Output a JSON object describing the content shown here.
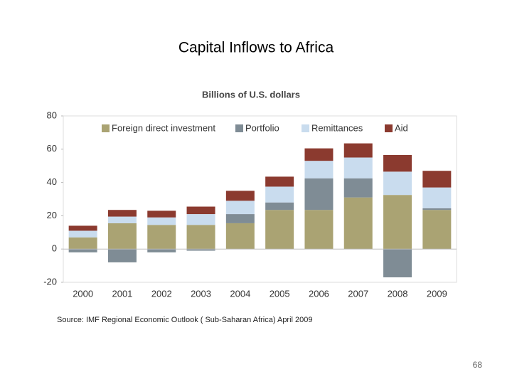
{
  "title": "Capital Inflows to Africa",
  "chart_data": {
    "type": "stacked-bar",
    "subtitle": "Billions of U.S. dollars",
    "categories": [
      "2000",
      "2001",
      "2002",
      "2003",
      "2004",
      "2005",
      "2006",
      "2007",
      "2008",
      "2009"
    ],
    "series": [
      {
        "name": "Foreign direct investment",
        "color": "#aaa373",
        "values": [
          7,
          15.5,
          14.5,
          14.5,
          15.5,
          23.5,
          23.5,
          31,
          32.5,
          23.5
        ]
      },
      {
        "name": "Portfolio",
        "color": "#7f8c95",
        "values": [
          -2,
          -8,
          -2,
          -1,
          5.5,
          4.5,
          19,
          11.5,
          -17,
          1
        ]
      },
      {
        "name": "Remittances",
        "color": "#c9dcee",
        "values": [
          4,
          4,
          4.5,
          6.5,
          8,
          9.5,
          10.5,
          12.5,
          14,
          12.5
        ]
      },
      {
        "name": "Aid",
        "color": "#8b3a2f",
        "values": [
          3,
          4,
          4,
          4.5,
          6,
          6,
          7.5,
          8.5,
          10,
          10
        ]
      }
    ],
    "ylim": [
      -20,
      80
    ],
    "yticks": [
      -20,
      0,
      20,
      40,
      60,
      80
    ],
    "legend": "top"
  },
  "source": "Source: IMF Regional Economic Outlook ( Sub-Saharan Africa) April 2009",
  "page_number": "68"
}
